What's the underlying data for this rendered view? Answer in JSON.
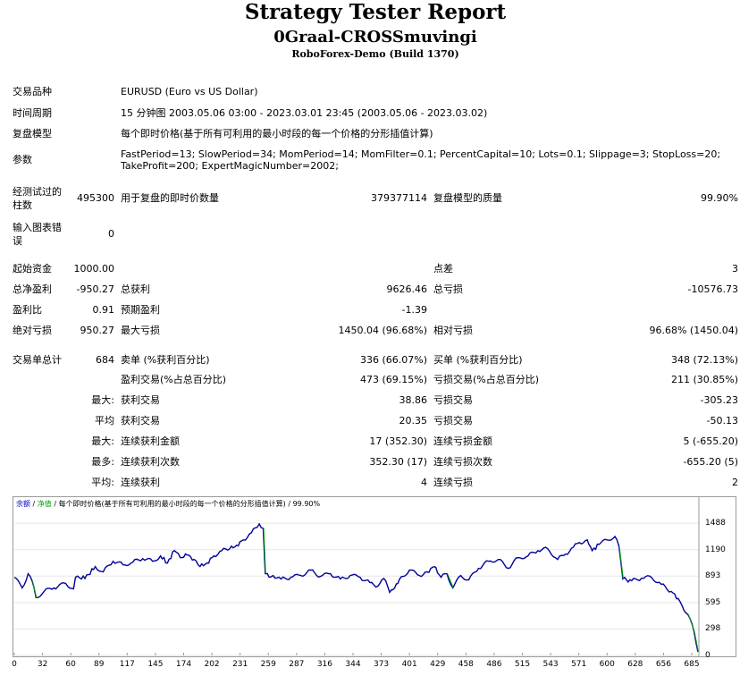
{
  "report": {
    "title": "Strategy Tester Report",
    "ea_name": "0Graal-CROSSmuvingi",
    "server": "RoboForex-Demo (Build 1370)"
  },
  "info": {
    "symbol_label": "交易品种",
    "symbol_value": "EURUSD (Euro vs US Dollar)",
    "period_label": "时间周期",
    "period_value": "15 分钟图 2003.05.06 03:00 - 2023.03.01 23:45 (2003.05.06 - 2023.03.02)",
    "model_label": "复盘模型",
    "model_value": "每个即时价格(基于所有可利用的最小时段的每一个价格的分形插值计算)",
    "params_label": "参数",
    "params_line1": "FastPeriod=13; SlowPeriod=34; MomPeriod=14; MomFilter=0.1; PercentCapital=10; Lots=0.1; Slippage=3; StopLoss=20;",
    "params_line2": "TakeProfit=200; ExpertMagicNumber=2002;"
  },
  "stats": {
    "bars_label": "经测试过的柱数",
    "bars_value": "495300",
    "ticks_label": "用于复盘的即时价数量",
    "ticks_value": "379377114",
    "quality_label": "复盘模型的质量",
    "quality_value": "99.90%",
    "mismatch_label": "输入图表错误",
    "mismatch_value": "0",
    "deposit_label": "起始资金",
    "deposit_value": "1000.00",
    "spread_label": "点差",
    "spread_value": "3",
    "net_label": "总净盈利",
    "net_value": "-950.27",
    "gross_profit_label": "总获利",
    "gross_profit_value": "9626.46",
    "gross_loss_label": "总亏损",
    "gross_loss_value": "-10576.73",
    "pf_label": "盈利比",
    "pf_value": "0.91",
    "expected_label": "预期盈利",
    "expected_value": "-1.39",
    "abs_dd_label": "绝对亏损",
    "abs_dd_value": "950.27",
    "max_dd_label": "最大亏损",
    "max_dd_value": "1450.04 (96.68%)",
    "rel_dd_label": "相对亏损",
    "rel_dd_value": "96.68% (1450.04)",
    "total_trades_label": "交易单总计",
    "total_trades_value": "684",
    "short_label": "卖单 (%获利百分比)",
    "short_value": "336 (66.07%)",
    "long_label": "买单 (%获利百分比)",
    "long_value": "348 (72.13%)",
    "profit_trades_label": "盈利交易(%占总百分比)",
    "profit_trades_value": "473 (69.15%)",
    "loss_trades_label": "亏损交易(%占总百分比)",
    "loss_trades_value": "211 (30.85%)",
    "largest_label": "最大:",
    "largest_profit_label": "获利交易",
    "largest_profit_value": "38.86",
    "largest_loss_label": "亏损交易",
    "largest_loss_value": "-305.23",
    "average_label": "平均",
    "average_profit_label": "获利交易",
    "average_profit_value": "20.35",
    "average_loss_label": "亏损交易",
    "average_loss_value": "-50.13",
    "max_consec_label": "最大:",
    "max_consec_wins_label": "连续获利金额",
    "max_consec_wins_value": "17 (352.30)",
    "max_consec_losses_label": "连续亏损金额",
    "max_consec_losses_value": "5 (-655.20)",
    "maximal_label": "最多:",
    "maximal_profit_label": "连续获利次数",
    "maximal_profit_value": "352.30 (17)",
    "maximal_loss_label": "连续亏损次数",
    "maximal_loss_value": "-655.20 (5)",
    "avg_consec_label": "平均:",
    "avg_consec_wins_label": "连续获利",
    "avg_consec_wins_value": "4",
    "avg_consec_losses_label": "连续亏损",
    "avg_consec_losses_value": "2"
  },
  "chart": {
    "legend_balance": "余额",
    "legend_sep1": " / ",
    "legend_equity": "净值",
    "legend_sep2": " / ",
    "legend_model": "每个即时价格(基于所有可利用的最小时段的每一个价格的分形插值计算)",
    "legend_sep3": " / ",
    "legend_quality": "99.90%",
    "balance_color": "#000099",
    "equity_color": "#00a000",
    "caption_color": "#0000cc"
  },
  "chart_data": {
    "type": "line",
    "x_ticks": [
      "0",
      "32",
      "60",
      "89",
      "117",
      "145",
      "174",
      "202",
      "231",
      "259",
      "287",
      "316",
      "344",
      "373",
      "401",
      "429",
      "458",
      "486",
      "515",
      "543",
      "571",
      "600",
      "628",
      "656",
      "685"
    ],
    "y_ticks": [
      "1488",
      "1190",
      "893",
      "595",
      "298",
      "0"
    ],
    "xlim": [
      0,
      693
    ],
    "ylim": [
      0,
      1570
    ],
    "series": [
      {
        "name": "余额",
        "x": [
          0,
          8,
          14,
          18,
          22,
          30,
          40,
          52,
          60,
          62,
          68,
          75,
          82,
          90,
          100,
          110,
          120,
          130,
          140,
          148,
          155,
          162,
          168,
          175,
          182,
          188,
          195,
          202,
          210,
          218,
          225,
          232,
          240,
          248,
          252,
          254,
          258,
          262,
          270,
          280,
          290,
          300,
          310,
          320,
          330,
          340,
          350,
          360,
          368,
          372,
          376,
          380,
          385,
          390,
          400,
          410,
          418,
          425,
          432,
          438,
          444,
          452,
          460,
          470,
          480,
          490,
          500,
          510,
          520,
          530,
          540,
          550,
          558,
          566,
          572,
          580,
          585,
          592,
          600,
          608,
          612,
          616,
          625,
          635,
          645,
          655,
          665,
          672,
          676,
          682,
          688,
          692
        ],
        "y": [
          880,
          760,
          920,
          840,
          650,
          720,
          760,
          810,
          750,
          880,
          860,
          910,
          1000,
          940,
          1060,
          1020,
          1050,
          1090,
          1060,
          1120,
          1040,
          1180,
          1100,
          1130,
          1080,
          1000,
          1040,
          1120,
          1180,
          1200,
          1240,
          1300,
          1380,
          1480,
          1430,
          920,
          880,
          900,
          860,
          880,
          900,
          960,
          890,
          920,
          860,
          900,
          880,
          820,
          780,
          850,
          840,
          710,
          760,
          860,
          960,
          900,
          940,
          1000,
          880,
          920,
          760,
          900,
          850,
          980,
          1060,
          1080,
          980,
          1100,
          1120,
          1180,
          1200,
          1080,
          1140,
          1220,
          1270,
          1300,
          1180,
          1250,
          1300,
          1340,
          1230,
          860,
          840,
          870,
          880,
          800,
          720,
          640,
          560,
          460,
          270,
          40
        ],
        "color": "#000099"
      }
    ]
  }
}
